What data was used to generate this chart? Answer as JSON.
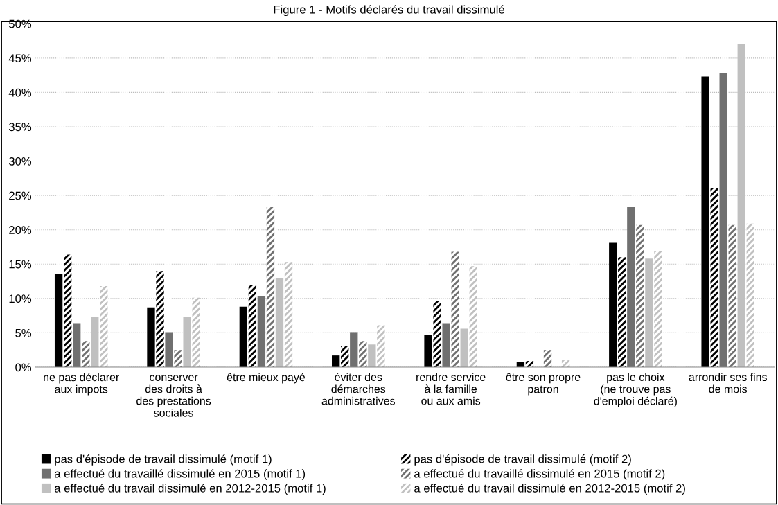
{
  "chart_data": {
    "type": "bar",
    "title": "Figure 1 - Motifs déclarés du travail dissimulé",
    "categories": [
      "ne pas déclarer\naux impots",
      "conserver\ndes droits à\ndes prestations\nsociales",
      "être mieux payé",
      "éviter des\ndémarches\nadministratives",
      "rendre service\nà la famille\nou aux amis",
      "être son propre\npatron",
      "pas le choix\n(ne trouve pas\nd'emploi déclaré)",
      "arrondir ses fins\nde mois"
    ],
    "series": [
      {
        "name": "pas d'épisode de travail dissimulé (motif 1)",
        "color": "#000000",
        "values": [
          13.6,
          8.7,
          8.8,
          1.7,
          4.7,
          0.8,
          18.1,
          42.3
        ]
      },
      {
        "name": "pas d'épisode de travail dissimulé (motif 2)",
        "color": "#000000",
        "values": [
          16.4,
          14.0,
          11.9,
          3.1,
          9.6,
          0.9,
          16.0,
          26.1
        ]
      },
      {
        "name": "a effectué du travaillé dissimulé en 2015 (motif 1)",
        "color": "#707070",
        "values": [
          6.4,
          5.1,
          10.3,
          5.1,
          6.4,
          0,
          23.3,
          42.8
        ]
      },
      {
        "name": "a effectué du travaillé dissimulé en 2015 (motif 2)",
        "color": "#707070",
        "values": [
          3.8,
          2.5,
          23.3,
          3.8,
          16.8,
          2.5,
          20.7,
          20.7
        ]
      },
      {
        "name": "a effectué du travail dissimulé en 2012-2015 (motif 1)",
        "color": "#c0c0c0",
        "values": [
          7.3,
          7.3,
          13.0,
          3.3,
          5.6,
          0,
          15.8,
          47.1
        ]
      },
      {
        "name": "a effectué du travail dissimulé en 2012-2015 (motif 2)",
        "color": "#c0c0c0",
        "values": [
          11.8,
          10.1,
          15.3,
          6.1,
          14.7,
          1.0,
          16.9,
          20.9
        ]
      }
    ],
    "ylim": [
      0,
      50
    ],
    "yticks": [
      {
        "value": 0,
        "label": "0%"
      },
      {
        "value": 5,
        "label": "5%"
      },
      {
        "value": 10,
        "label": "10%"
      },
      {
        "value": 15,
        "label": "15%"
      },
      {
        "value": 20,
        "label": "20%"
      },
      {
        "value": 25,
        "label": "25%"
      },
      {
        "value": 30,
        "label": "30%"
      },
      {
        "value": 35,
        "label": "35%"
      },
      {
        "value": 40,
        "label": "40%"
      },
      {
        "value": 45,
        "label": "45%"
      },
      {
        "value": 50,
        "label": "50%"
      }
    ],
    "grid": "y",
    "legend": "bottom"
  }
}
